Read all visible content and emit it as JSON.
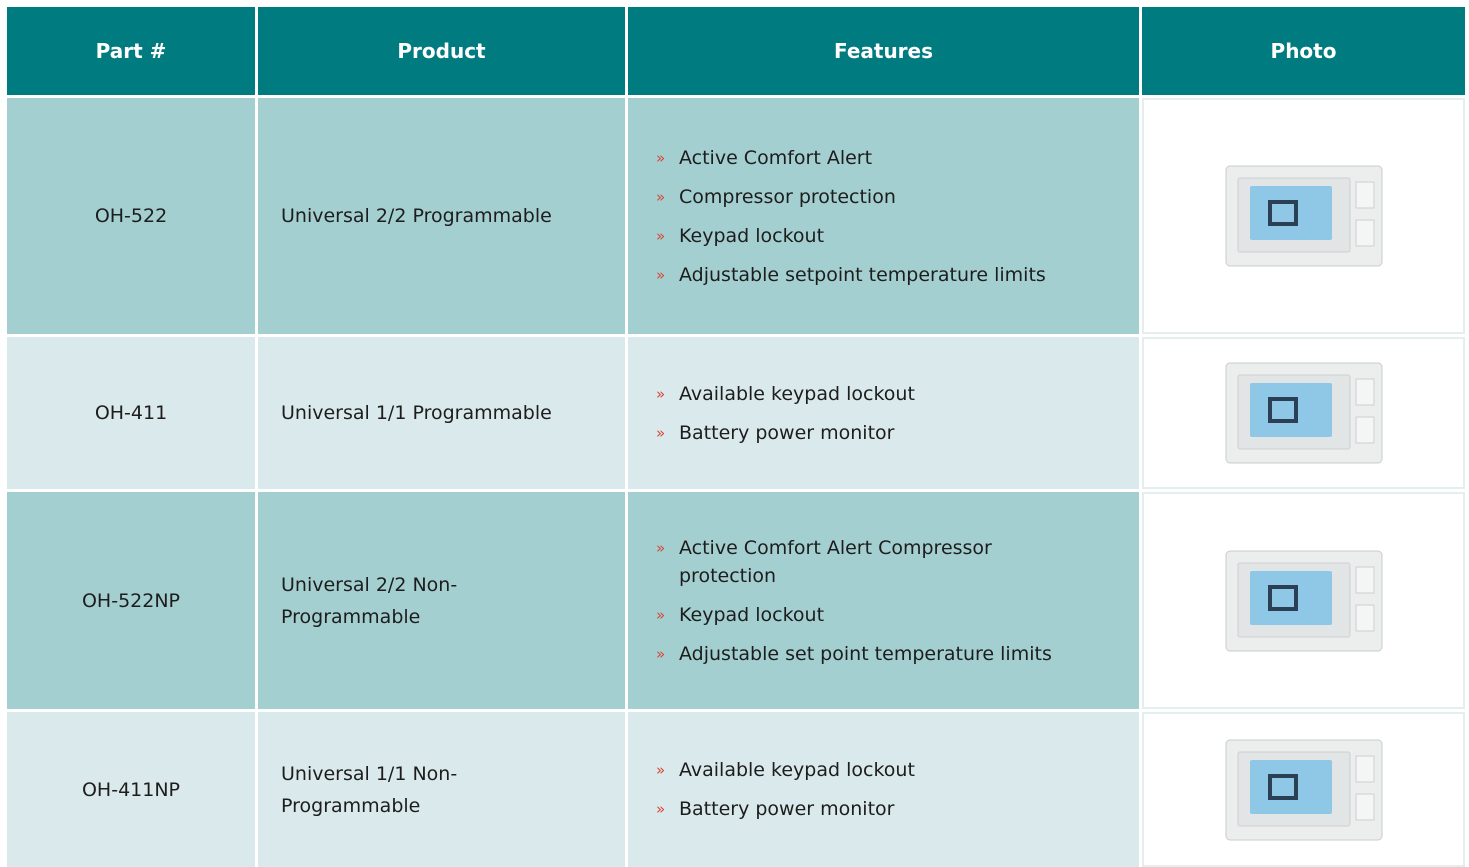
{
  "table": {
    "header": [
      "Part #",
      "Product",
      "Features",
      "Photo"
    ],
    "rows": [
      {
        "part": "OH-522",
        "product": "Universal 2/2 Programmable",
        "features": [
          "Active Comfort Alert",
          "Compressor protection",
          "Keypad lockout",
          "Adjustable setpoint temperature limits"
        ]
      },
      {
        "part": "OH-411",
        "product": "Universal 1/1 Programmable",
        "features": [
          "Available keypad lockout",
          "Battery power monitor"
        ]
      },
      {
        "part": "OH-522NP",
        "product": "Universal 2/2 Non-Programmable",
        "features": [
          "Active Comfort Alert Compressor protection",
          "Keypad lockout",
          "Adjustable set point temperature limits"
        ]
      },
      {
        "part": "OH-411NP",
        "product": "Universal 1/1 Non-Programmable",
        "features": [
          "Available keypad lockout",
          "Battery power monitor"
        ]
      }
    ]
  }
}
